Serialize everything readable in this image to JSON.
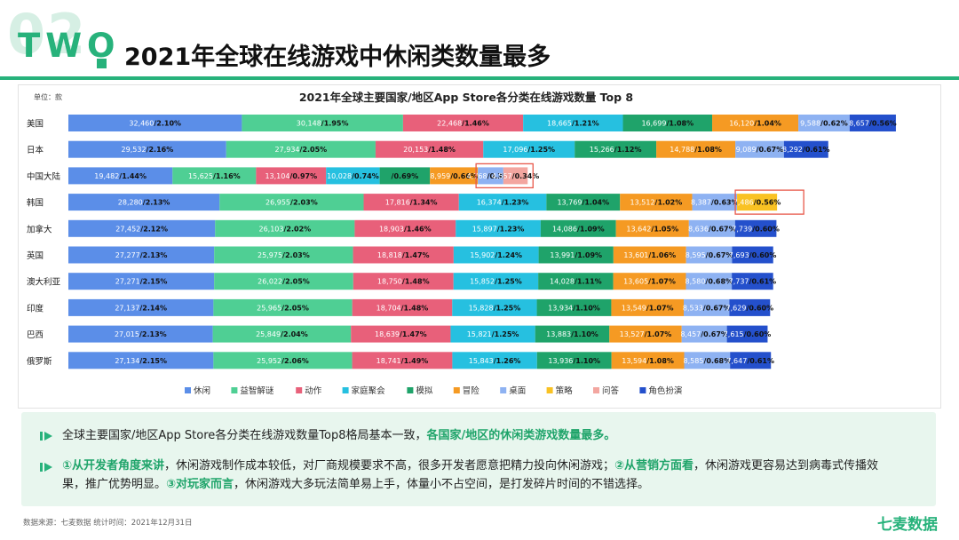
{
  "header": {
    "section_number": "02",
    "section_label": "TWO",
    "title": "2021年全球在线游戏中休闲类数量最多"
  },
  "chart_data": {
    "type": "bar",
    "orientation": "horizontal-stacked",
    "title": "2021年全球主要国家/地区App Store各分类在线游戏数量 Top 8",
    "unit_label": "单位：款",
    "legend_position": "bottom",
    "legend": [
      {
        "name": "休闲",
        "color": "#5b8ee8"
      },
      {
        "name": "益智解谜",
        "color": "#4fcf94"
      },
      {
        "name": "动作",
        "color": "#e8607a"
      },
      {
        "name": "家庭聚会",
        "color": "#26c0e0"
      },
      {
        "name": "模拟",
        "color": "#1fa36a"
      },
      {
        "name": "冒险",
        "color": "#f59a23"
      },
      {
        "name": "桌面",
        "color": "#8eb2f2"
      },
      {
        "name": "策略",
        "color": "#f9c223"
      },
      {
        "name": "问答",
        "color": "#f3a6a0"
      },
      {
        "name": "角色扮演",
        "color": "#2450cc"
      }
    ],
    "rows": [
      {
        "country": "美国",
        "segments": [
          {
            "cat": 0,
            "value": 32460,
            "label": "32,460",
            "pct": "/2.10%"
          },
          {
            "cat": 1,
            "value": 30148,
            "label": "30,148",
            "pct": "/1.95%"
          },
          {
            "cat": 2,
            "value": 22468,
            "label": "22,468",
            "pct": "/1.46%"
          },
          {
            "cat": 3,
            "value": 18665,
            "label": "18,665",
            "pct": "/1.21%"
          },
          {
            "cat": 4,
            "value": 16699,
            "label": "16,699",
            "pct": "/1.08%"
          },
          {
            "cat": 5,
            "value": 16120,
            "label": "16,120",
            "pct": "/1.04%"
          },
          {
            "cat": 6,
            "value": 9588,
            "label": "9,588",
            "pct": "/0.62%"
          },
          {
            "cat": 9,
            "value": 8657,
            "label": "8,657",
            "pct": "/0.56%"
          }
        ]
      },
      {
        "country": "日本",
        "segments": [
          {
            "cat": 0,
            "value": 29532,
            "label": "29,532",
            "pct": "/2.16%"
          },
          {
            "cat": 1,
            "value": 27934,
            "label": "27,934",
            "pct": "/2.05%"
          },
          {
            "cat": 2,
            "value": 20153,
            "label": "20,153",
            "pct": "/1.48%"
          },
          {
            "cat": 3,
            "value": 17096,
            "label": "17,096",
            "pct": "/1.25%"
          },
          {
            "cat": 4,
            "value": 15266,
            "label": "15,266",
            "pct": "/1.12%"
          },
          {
            "cat": 5,
            "value": 14788,
            "label": "14,788",
            "pct": "/1.08%"
          },
          {
            "cat": 6,
            "value": 9089,
            "label": "9,089",
            "pct": "/0.67%"
          },
          {
            "cat": 9,
            "value": 8292,
            "label": "8,292",
            "pct": "/0.61%"
          }
        ]
      },
      {
        "country": "中国大陆",
        "segments": [
          {
            "cat": 0,
            "value": 19482,
            "label": "19,482",
            "pct": "/1.44%"
          },
          {
            "cat": 1,
            "value": 15625,
            "label": "15,625",
            "pct": "/1.16%"
          },
          {
            "cat": 2,
            "value": 13104,
            "label": "13,104",
            "pct": "/0.97%"
          },
          {
            "cat": 3,
            "value": 10028,
            "label": "10,028",
            "pct": "/0.74%"
          },
          {
            "cat": 4,
            "value": 9400,
            "label": "",
            "pct": "/0.69%"
          },
          {
            "cat": 5,
            "value": 8959,
            "label": "8,959",
            "pct": "/0.66%"
          },
          {
            "cat": 6,
            "value": 4768,
            "label": "4,768",
            "pct": "/0.35%"
          },
          {
            "cat": 8,
            "value": 4557,
            "label": "4,557",
            "pct": "/0.34%"
          }
        ]
      },
      {
        "country": "韩国",
        "segments": [
          {
            "cat": 0,
            "value": 28280,
            "label": "28,280",
            "pct": "/2.13%"
          },
          {
            "cat": 1,
            "value": 26955,
            "label": "26,955",
            "pct": "/2.03%"
          },
          {
            "cat": 2,
            "value": 17816,
            "label": "17,816",
            "pct": "/1.34%"
          },
          {
            "cat": 3,
            "value": 16374,
            "label": "16,374",
            "pct": "/1.23%"
          },
          {
            "cat": 4,
            "value": 13769,
            "label": "13,769",
            "pct": "/1.04%"
          },
          {
            "cat": 5,
            "value": 13512,
            "label": "13,512",
            "pct": "/1.02%"
          },
          {
            "cat": 6,
            "value": 8387,
            "label": "8,387",
            "pct": "/0.63%"
          },
          {
            "cat": 7,
            "value": 7486,
            "label": "7,486",
            "pct": "/0.56%"
          }
        ]
      },
      {
        "country": "加拿大",
        "segments": [
          {
            "cat": 0,
            "value": 27452,
            "label": "27,452",
            "pct": "/2.12%"
          },
          {
            "cat": 1,
            "value": 26103,
            "label": "26,103",
            "pct": "/2.02%"
          },
          {
            "cat": 2,
            "value": 18903,
            "label": "18,903",
            "pct": "/1.46%"
          },
          {
            "cat": 3,
            "value": 15897,
            "label": "15,897",
            "pct": "/1.23%"
          },
          {
            "cat": 4,
            "value": 14086,
            "label": "14,086",
            "pct": "/1.09%"
          },
          {
            "cat": 5,
            "value": 13642,
            "label": "13,642",
            "pct": "/1.05%"
          },
          {
            "cat": 6,
            "value": 8636,
            "label": "8,636",
            "pct": "/0.67%"
          },
          {
            "cat": 9,
            "value": 7739,
            "label": "7,739",
            "pct": "/0.60%"
          }
        ]
      },
      {
        "country": "英国",
        "segments": [
          {
            "cat": 0,
            "value": 27277,
            "label": "27,277",
            "pct": "/2.13%"
          },
          {
            "cat": 1,
            "value": 25975,
            "label": "25,975",
            "pct": "/2.03%"
          },
          {
            "cat": 2,
            "value": 18818,
            "label": "18,818",
            "pct": "/1.47%"
          },
          {
            "cat": 3,
            "value": 15902,
            "label": "15,902",
            "pct": "/1.24%"
          },
          {
            "cat": 4,
            "value": 13991,
            "label": "13,991",
            "pct": "/1.09%"
          },
          {
            "cat": 5,
            "value": 13601,
            "label": "13,601",
            "pct": "/1.06%"
          },
          {
            "cat": 6,
            "value": 8595,
            "label": "8,595",
            "pct": "/0.67%"
          },
          {
            "cat": 9,
            "value": 7693,
            "label": "7,693",
            "pct": "/0.60%"
          }
        ]
      },
      {
        "country": "澳大利亚",
        "segments": [
          {
            "cat": 0,
            "value": 27271,
            "label": "27,271",
            "pct": "/2.15%"
          },
          {
            "cat": 1,
            "value": 26022,
            "label": "26,022",
            "pct": "/2.05%"
          },
          {
            "cat": 2,
            "value": 18750,
            "label": "18,750",
            "pct": "/1.48%"
          },
          {
            "cat": 3,
            "value": 15852,
            "label": "15,852",
            "pct": "/1.25%"
          },
          {
            "cat": 4,
            "value": 14028,
            "label": "14,028",
            "pct": "/1.11%"
          },
          {
            "cat": 5,
            "value": 13605,
            "label": "13,605",
            "pct": "/1.07%"
          },
          {
            "cat": 6,
            "value": 8580,
            "label": "8,580",
            "pct": "/0.68%"
          },
          {
            "cat": 9,
            "value": 7737,
            "label": "7,737",
            "pct": "/0.61%"
          }
        ]
      },
      {
        "country": "印度",
        "segments": [
          {
            "cat": 0,
            "value": 27137,
            "label": "27,137",
            "pct": "/2.14%"
          },
          {
            "cat": 1,
            "value": 25965,
            "label": "25,965",
            "pct": "/2.05%"
          },
          {
            "cat": 2,
            "value": 18704,
            "label": "18,704",
            "pct": "/1.48%"
          },
          {
            "cat": 3,
            "value": 15828,
            "label": "15,828",
            "pct": "/1.25%"
          },
          {
            "cat": 4,
            "value": 13934,
            "label": "13,934",
            "pct": "/1.10%"
          },
          {
            "cat": 5,
            "value": 13549,
            "label": "13,549",
            "pct": "/1.07%"
          },
          {
            "cat": 6,
            "value": 8533,
            "label": "8,533",
            "pct": "/0.67%"
          },
          {
            "cat": 9,
            "value": 7629,
            "label": "7,629",
            "pct": "/0.60%"
          }
        ]
      },
      {
        "country": "巴西",
        "segments": [
          {
            "cat": 0,
            "value": 27015,
            "label": "27,015",
            "pct": "/2.13%"
          },
          {
            "cat": 1,
            "value": 25849,
            "label": "25,849",
            "pct": "/2.04%"
          },
          {
            "cat": 2,
            "value": 18639,
            "label": "18,639",
            "pct": "/1.47%"
          },
          {
            "cat": 3,
            "value": 15821,
            "label": "15,821",
            "pct": "/1.25%"
          },
          {
            "cat": 4,
            "value": 13883,
            "label": "13,883",
            "pct": "/1.10%"
          },
          {
            "cat": 5,
            "value": 13527,
            "label": "13,527",
            "pct": "/1.07%"
          },
          {
            "cat": 6,
            "value": 8457,
            "label": "8,457",
            "pct": "/0.67%"
          },
          {
            "cat": 9,
            "value": 7615,
            "label": "7,615",
            "pct": "/0.60%"
          }
        ]
      },
      {
        "country": "俄罗斯",
        "segments": [
          {
            "cat": 0,
            "value": 27134,
            "label": "27,134",
            "pct": "/2.15%"
          },
          {
            "cat": 1,
            "value": 25952,
            "label": "25,952",
            "pct": "/2.06%"
          },
          {
            "cat": 2,
            "value": 18741,
            "label": "18,741",
            "pct": "/1.49%"
          },
          {
            "cat": 3,
            "value": 15843,
            "label": "15,843",
            "pct": "/1.26%"
          },
          {
            "cat": 4,
            "value": 13936,
            "label": "13,936",
            "pct": "/1.10%"
          },
          {
            "cat": 5,
            "value": 13594,
            "label": "13,594",
            "pct": "/1.08%"
          },
          {
            "cat": 6,
            "value": 8585,
            "label": "8,585",
            "pct": "/0.68%"
          },
          {
            "cat": 9,
            "value": 7647,
            "label": "7,647",
            "pct": "/0.61%"
          }
        ]
      }
    ],
    "highlighted": [
      {
        "row": 2,
        "segments": [
          6,
          7
        ]
      },
      {
        "row": 3,
        "segments": [
          7
        ]
      }
    ]
  },
  "summary": {
    "line1_a": "全球主要国家/地区App Store各分类在线游戏数量Top8格局基本一致，",
    "line1_b": "各国家/地区的休闲类游戏数量最多。",
    "line2_a": "①从开发者角度来讲",
    "line2_b": "，休闲游戏制作成本较低，对厂商规模要求不高，很多开发者愿意把精力投向休闲游戏；",
    "line2_c": "②从营销方面看",
    "line2_d": "，休闲游戏更容易达到病毒式传播效",
    "line3_a": "果，推广优势明显。",
    "line3_b": "③对玩家而言",
    "line3_c": "，休闲游戏大多玩法简单易上手，体量小不占空间，是打发碎片时间的不错选择。"
  },
  "footer": {
    "source": "数据来源：七麦数据  统计时间：2021年12月31日",
    "brand": "七麦数据"
  }
}
